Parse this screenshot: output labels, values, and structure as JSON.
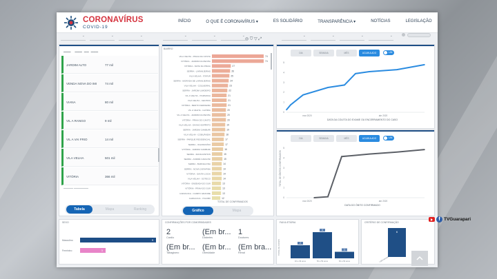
{
  "header": {
    "brand": "CORONAVÍRUS",
    "brand_sub": "COVID-19",
    "nav": [
      "INÍCIO",
      "O QUE É CORONAVÍRUS ▾",
      "ES SOLIDÁRIO",
      "TRANSPARÊNCIA ▾",
      "NOTÍCIAS",
      "LEGISLAÇÃO"
    ]
  },
  "cities": {
    "rows": [
      {
        "name": "JARDIM ALTO",
        "value": "77 mil"
      },
      {
        "name": "VENDA NOVA DO IMI",
        "value": "74 mil"
      },
      {
        "name": "VIANA",
        "value": "80 mil"
      },
      {
        "name": "VIL A RANGO",
        "value": "9 mil"
      },
      {
        "name": "VIL A VAI FRIO",
        "value": "14 mil"
      },
      {
        "name": "VILA VELHA",
        "value": "501 mil"
      },
      {
        "name": "VITÓRIA",
        "value": "366 mil"
      }
    ],
    "buttons": [
      "Tabela",
      "Mapa",
      "Ranking"
    ]
  },
  "bars": {
    "section_label": "BAIRRO",
    "footer_label": "TOTAL DE CONFIRMADOS",
    "buttons": [
      "Gráfico",
      "Mapa"
    ],
    "items": [
      {
        "label": "VILA VELHA - PRAIA DA COSTA",
        "value": "74"
      },
      {
        "label": "VITÓRIA - JARDIM DA PENHA",
        "value": "74"
      },
      {
        "label": "VITÓRIA - MATA DA PRAIA",
        "value": "27"
      },
      {
        "label": "SERRA - LARANJEIRAS",
        "value": "26"
      },
      {
        "label": "VILA VELHA - ITAPUÃ",
        "value": "25"
      },
      {
        "label": "SERRA - MORADA DE LARANJEIRAS",
        "value": "24"
      },
      {
        "label": "VILA VELHA - COQUEIRAL",
        "value": "23"
      },
      {
        "label": "SERRA - JARDIM LIMOEIRO",
        "value": "22"
      },
      {
        "label": "VIL A VELHA - ITAPARICA",
        "value": "21"
      },
      {
        "label": "VILA VELHA - CENTRO",
        "value": "21"
      },
      {
        "label": "VITÓRIA - BENTO FERREIRA",
        "value": "21"
      },
      {
        "label": "VIL A VELHA - GLÓRIA",
        "value": "20"
      },
      {
        "label": "VIL A VELHA - JARDIM DA PENHA",
        "value": "20"
      },
      {
        "label": "VITÓRIA - PRAIA DO CANTO",
        "value": "20"
      },
      {
        "label": "VILA VELHA - DIVINO ESPÍRITO",
        "value": "19"
      },
      {
        "label": "SERRA - JARDIM CAMBURI",
        "value": "19"
      },
      {
        "label": "VILA VELHA - COBILÂNDIA",
        "value": "18"
      },
      {
        "label": "SERRA - PARQUE RESIDENCIAL",
        "value": "17"
      },
      {
        "label": "SERRA - VALPARAÍSO",
        "value": "17"
      },
      {
        "label": "VITÓRIA - JARDIM CAMBURI",
        "value": "16"
      },
      {
        "label": "SERRA - MANGUINHOS",
        "value": "15"
      },
      {
        "label": "SERRA - ANDRÉ CARLONI",
        "value": "15"
      },
      {
        "label": "SERRA - BARCELONA",
        "value": "14"
      },
      {
        "label": "SERRA - NOVA CARAPINA",
        "value": "14"
      },
      {
        "label": "VITÓRIA - SANTA LÚCIA",
        "value": "14"
      },
      {
        "label": "VILA VELHA - SOTECO",
        "value": "14"
      },
      {
        "label": "VITÓRIA - ENSEADA DO SUÁ",
        "value": "13"
      },
      {
        "label": "VITÓRIA - PRAIA DO SUÁ",
        "value": "13"
      },
      {
        "label": "CARIACICA - CAMPO GRANDE",
        "value": "13"
      },
      {
        "label": "CARIACICA - ITACIBÁ",
        "value": "12"
      }
    ]
  },
  "line1": {
    "tabs": [
      "DIA",
      "SEMANA",
      "MÊS",
      "ACUMULADO"
    ],
    "toggle_label": "LIN",
    "xlabel": "DATA DA COLETA DO EXAME OU ENCERRAMENTO DO CASO",
    "x_ticks": [
      "mar 2020",
      "abr 2020"
    ],
    "y_ticks": [
      "0",
      "1",
      "2",
      "3",
      "4",
      "5"
    ]
  },
  "line2": {
    "tabs": [
      "DIA",
      "SEMANA",
      "MÊS",
      "ACUMULADO"
    ],
    "toggle_label": "LIN",
    "xlabel": "DATA DO ÓBITO CONFIRMADO",
    "ylabel": "TOTAL DE ÓBITOS CONFIRMADOS",
    "x_ticks": [
      "mar 2020",
      "abr 2020"
    ],
    "y_ticks": [
      "0",
      "1",
      "2",
      "3",
      "4",
      "5"
    ]
  },
  "sex": {
    "title": "SEXO",
    "rows": [
      {
        "label": "Masculino",
        "value": "9",
        "color": "#1d4d86"
      },
      {
        "label": "Feminino",
        "value": "3",
        "color": "#e884c8"
      }
    ]
  },
  "comorb": {
    "title": "CONFIRMAÇÕES POR COMORBIDADES",
    "items": [
      {
        "value": "2",
        "label": "Cardio"
      },
      {
        "value": "(Em br...",
        "label": "Diabetes"
      },
      {
        "value": "1",
        "label": "Doutores"
      },
      {
        "value": "(Em br...",
        "label": "Tabagismo"
      },
      {
        "value": "(Em br...",
        "label": "Obesidade"
      },
      {
        "value": "(Em bra...",
        "label": "Renal"
      }
    ]
  },
  "age": {
    "title": "FAIXA ETÁRIA",
    "ylabel": "TOTAL DE CASOS",
    "bars": [
      {
        "label": "40 a 49 anos",
        "value": "2"
      },
      {
        "label": "50 a 59 anos",
        "value": "4"
      },
      {
        "label": "60 a 69 anos",
        "value": "1"
      }
    ]
  },
  "criterio": {
    "title": "CRITÉRIO DE CONFIRMAÇÃO",
    "value": "6",
    "label": "Laboratorial"
  },
  "social": {
    "handle": "TVGuarapari",
    "fb": "f"
  },
  "colors": {
    "accent": "#1565b5",
    "navy": "#1f4f86",
    "green": "#2fa34a",
    "line": "#2a8be0"
  }
}
